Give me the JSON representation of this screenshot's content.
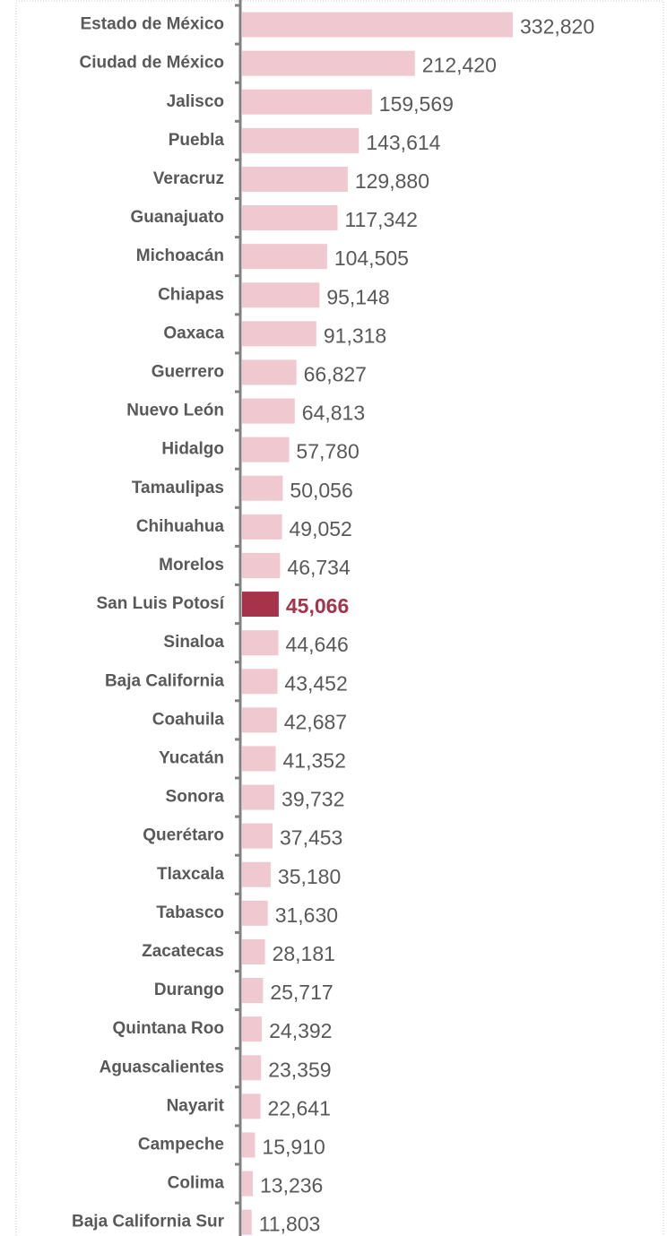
{
  "chart_data": {
    "type": "bar",
    "orientation": "horizontal",
    "categories": [
      "Estado de México",
      "Ciudad de México",
      "Jalisco",
      "Puebla",
      "Veracruz",
      "Guanajuato",
      "Michoacán",
      "Chiapas",
      "Oaxaca",
      "Guerrero",
      "Nuevo León",
      "Hidalgo",
      "Tamaulipas",
      "Chihuahua",
      "Morelos",
      "San Luis Potosí",
      "Sinaloa",
      "Baja California",
      "Coahuila",
      "Yucatán",
      "Sonora",
      "Querétaro",
      "Tlaxcala",
      "Tabasco",
      "Zacatecas",
      "Durango",
      "Quintana Roo",
      "Aguascalientes",
      "Nayarit",
      "Campeche",
      "Colima",
      "Baja California Sur"
    ],
    "values": [
      332820,
      212420,
      159569,
      143614,
      129880,
      117342,
      104505,
      95148,
      91318,
      66827,
      64813,
      57780,
      50056,
      49052,
      46734,
      45066,
      44646,
      43452,
      42687,
      41352,
      39732,
      37453,
      35180,
      31630,
      28181,
      25717,
      24392,
      23359,
      22641,
      15910,
      13236,
      11803
    ],
    "value_labels": [
      "332,820",
      "212,420",
      "159,569",
      "143,614",
      "129,880",
      "117,342",
      "104,505",
      "95,148",
      "91,318",
      "66,827",
      "64,813",
      "57,780",
      "50,056",
      "49,052",
      "46,734",
      "45,066",
      "44,646",
      "43,452",
      "42,687",
      "41,352",
      "39,732",
      "37,453",
      "35,180",
      "31,630",
      "28,181",
      "25,717",
      "24,392",
      "23,359",
      "22,641",
      "15,910",
      "13,236",
      "11,803"
    ],
    "color": "#f0c8d0",
    "colors": [
      "#f0c8d0",
      "#f0c8d0",
      "#f0c8d0",
      "#f0c8d0",
      "#f0c8d0",
      "#f0c8d0",
      "#f0c8d0",
      "#f0c8d0",
      "#f0c8d0",
      "#f0c8d0",
      "#f0c8d0",
      "#f0c8d0",
      "#f0c8d0",
      "#f0c8d0",
      "#f0c8d0",
      "#a6334a",
      "#f0c8d0",
      "#f0c8d0",
      "#f0c8d0",
      "#f0c8d0",
      "#f0c8d0",
      "#f0c8d0",
      "#f0c8d0",
      "#f0c8d0",
      "#f0c8d0",
      "#f0c8d0",
      "#f0c8d0",
      "#f0c8d0",
      "#f0c8d0",
      "#f0c8d0",
      "#f0c8d0",
      "#f0c8d0"
    ]
  }
}
